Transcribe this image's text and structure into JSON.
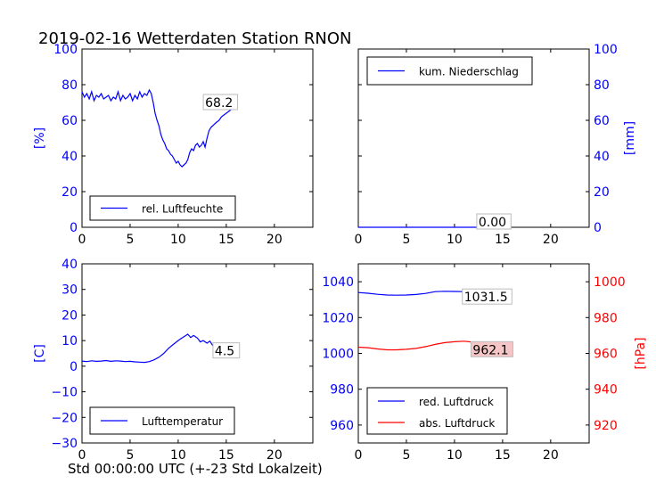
{
  "figure": {
    "title": "2019-02-16 Wetterdaten Station RNON",
    "xlabel": "Std 00:00:00 UTC (+-23 Std Lokalzeit)"
  },
  "chart_data": [
    {
      "id": "humidity",
      "type": "line",
      "ylabel": "[%]",
      "xlim": [
        0,
        24
      ],
      "ylim": [
        0,
        100
      ],
      "xticks": [
        "0",
        "5",
        "10",
        "15",
        "20"
      ],
      "yticks": [
        "0",
        "20",
        "40",
        "60",
        "80",
        "100"
      ],
      "legend": {
        "position": "lower-left"
      },
      "annotation": "68.2",
      "series": [
        {
          "name": "rel. Luftfeuchte",
          "color": "#0000ff",
          "x": [
            0,
            0.25,
            0.5,
            0.75,
            1,
            1.25,
            1.5,
            1.75,
            2,
            2.25,
            2.5,
            2.75,
            3,
            3.25,
            3.5,
            3.75,
            4,
            4.25,
            4.5,
            4.75,
            5,
            5.25,
            5.5,
            5.75,
            6,
            6.25,
            6.5,
            6.75,
            7,
            7.2,
            7.4,
            7.6,
            7.8,
            8,
            8.2,
            8.4,
            8.6,
            8.8,
            9,
            9.2,
            9.4,
            9.6,
            9.8,
            10,
            10.2,
            10.4,
            10.6,
            10.8,
            11,
            11.2,
            11.4,
            11.6,
            11.8,
            12,
            12.2,
            12.4,
            12.6,
            12.8,
            13,
            13.2,
            13.4,
            13.6,
            13.8,
            14,
            14.25,
            14.5,
            14.75,
            15,
            15.25,
            15.5,
            15.75
          ],
          "y": [
            76,
            73,
            75,
            72,
            76,
            71,
            74,
            73,
            75,
            72,
            73,
            74,
            71,
            73,
            72,
            76,
            71,
            74,
            72,
            73,
            75,
            71,
            74,
            72,
            76,
            73,
            75,
            74,
            77,
            75,
            70,
            64,
            60,
            57,
            52,
            49,
            47,
            44,
            43,
            41,
            40,
            38,
            36,
            37,
            35,
            34,
            35,
            36,
            38,
            42,
            44,
            43,
            46,
            47,
            45,
            46,
            48,
            45,
            50,
            54,
            56,
            57,
            58,
            59,
            60,
            62,
            63,
            64,
            65,
            66,
            68.2
          ]
        }
      ]
    },
    {
      "id": "precip",
      "type": "line",
      "ylabel": "[mm]",
      "xlim": [
        0,
        24
      ],
      "ylim": [
        0,
        100
      ],
      "xticks": [
        "0",
        "5",
        "10",
        "15",
        "20"
      ],
      "yticks": [
        "0",
        "20",
        "40",
        "60",
        "80",
        "100"
      ],
      "legend": {
        "position": "upper-left"
      },
      "annotation": "0.00",
      "series": [
        {
          "name": "kum. Niederschlag",
          "color": "#0000ff",
          "x": [
            0,
            15.75
          ],
          "y": [
            0,
            0
          ]
        }
      ]
    },
    {
      "id": "temperature",
      "type": "line",
      "ylabel": "[C]",
      "xlim": [
        0,
        24
      ],
      "ylim": [
        -30,
        40
      ],
      "xticks": [
        "0",
        "5",
        "10",
        "15",
        "20"
      ],
      "yticks": [
        "−30",
        "−20",
        "−10",
        "0",
        "10",
        "20",
        "30",
        "40"
      ],
      "legend": {
        "position": "lower-left"
      },
      "annotation": "4.5",
      "series": [
        {
          "name": "Lufttemperatur",
          "color": "#0000ff",
          "x": [
            0,
            0.5,
            1,
            1.5,
            2,
            2.5,
            3,
            3.5,
            4,
            4.5,
            5,
            5.5,
            6,
            6.5,
            7,
            7.5,
            8,
            8.5,
            9,
            9.5,
            10,
            10.3,
            10.6,
            11,
            11.3,
            11.6,
            12,
            12.3,
            12.6,
            13,
            13.3,
            13.6,
            14,
            14.5,
            15,
            15.5,
            15.75
          ],
          "y": [
            2,
            1.8,
            2.1,
            1.9,
            2,
            2.2,
            1.9,
            2.1,
            2,
            1.8,
            1.9,
            1.7,
            1.6,
            1.5,
            1.8,
            2.5,
            3.5,
            5,
            7,
            8.5,
            10,
            10.8,
            11.5,
            12.5,
            11.2,
            12,
            11,
            9.5,
            10,
            9,
            9.8,
            8,
            7.2,
            6,
            5.2,
            4.8,
            4.5
          ]
        }
      ]
    },
    {
      "id": "pressure",
      "type": "line",
      "xlim": [
        0,
        24
      ],
      "ylim": [
        950,
        1050
      ],
      "ylim_right": [
        910,
        1010
      ],
      "ylabel_right": "[hPa]",
      "xticks": [
        "0",
        "5",
        "10",
        "15",
        "20"
      ],
      "yticks": [
        "960",
        "980",
        "1000",
        "1020",
        "1040"
      ],
      "yticks_right": [
        "920",
        "940",
        "960",
        "980",
        "1000"
      ],
      "legend": {
        "position": "lower-left"
      },
      "annotations": [
        "1031.5",
        "962.1"
      ],
      "series": [
        {
          "name": "red. Luftdruck",
          "color": "#0000ff",
          "axis": "left",
          "x": [
            0,
            1,
            2,
            3,
            4,
            5,
            6,
            7,
            8,
            9,
            10,
            11,
            12,
            13,
            14,
            15,
            15.75
          ],
          "y": [
            1034,
            1033.6,
            1033,
            1032.6,
            1032.5,
            1032.6,
            1032.9,
            1033.5,
            1034.5,
            1034.7,
            1034.6,
            1034.5,
            1034.3,
            1033.6,
            1032.8,
            1032,
            1031.5
          ]
        },
        {
          "name": "abs. Luftdruck",
          "color": "#ff0000",
          "axis": "right",
          "x": [
            0,
            1,
            2,
            3,
            4,
            5,
            6,
            7,
            8,
            9,
            10,
            11,
            12,
            13,
            14,
            15,
            15.75
          ],
          "y": [
            963.5,
            963.2,
            962.5,
            962,
            962,
            962.3,
            962.8,
            963.8,
            965,
            966,
            966.5,
            966.8,
            966.2,
            965,
            964,
            962.8,
            962.1
          ]
        }
      ]
    }
  ]
}
